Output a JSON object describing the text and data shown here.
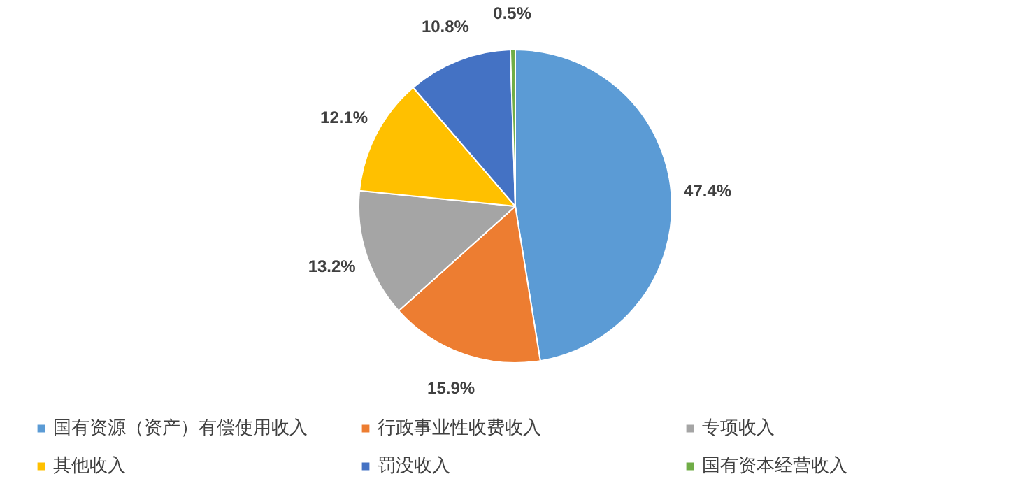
{
  "chart_data": {
    "type": "pie",
    "categories": [
      "国有资源（资产）有偿使用收入",
      "行政事业性收费收入",
      "专项收入",
      "其他收入",
      "罚没收入",
      "国有资本经营收入"
    ],
    "values": [
      47.4,
      15.9,
      13.2,
      12.1,
      10.8,
      0.5
    ],
    "value_labels": [
      "47.4%",
      "15.9%",
      "13.2%",
      "12.1%",
      "10.8%",
      "0.5%"
    ],
    "colors": [
      "#5b9bd5",
      "#ed7d31",
      "#a5a5a5",
      "#ffc000",
      "#4472c4",
      "#70ad47"
    ],
    "legend": "bottom"
  }
}
